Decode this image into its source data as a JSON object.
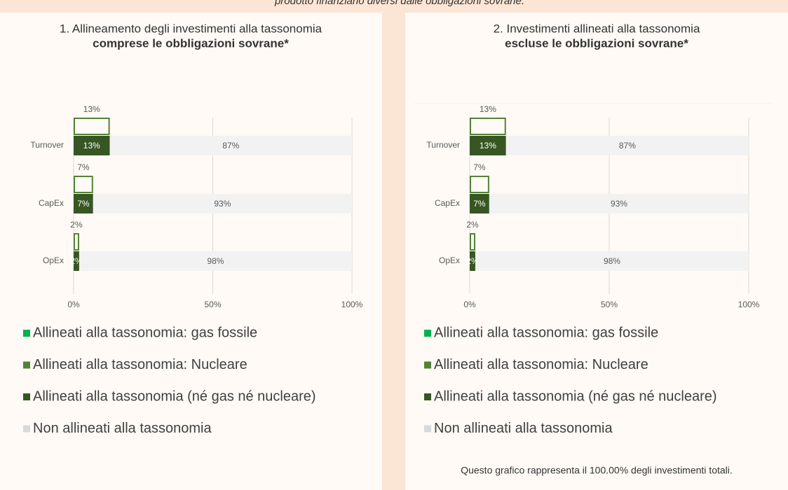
{
  "header": "prodotto finanziario diversi dalle obbligazioni sovrane.",
  "chart_data": [
    {
      "type": "bar",
      "orientation": "horizontal",
      "stacked": true,
      "title": "1. Allineamento degli investimenti alla tassonomia",
      "title_bold": "comprese le obbligazioni sovrane*",
      "categories": [
        "Turnover",
        "CapEx",
        "OpEx"
      ],
      "series": [
        {
          "name": "Allineati alla tassonomia: gas fossile",
          "color": "#00b050",
          "values": [
            0,
            0,
            0
          ]
        },
        {
          "name": "Allineati alla tassonomia: Nucleare",
          "color": "#548235",
          "values": [
            0,
            0,
            0
          ]
        },
        {
          "name": "Allineati alla tassonomia (né gas né nucleare)",
          "color": "#375623",
          "values": [
            13,
            7,
            2
          ],
          "value_labels": [
            "13%",
            "7%",
            "2%"
          ]
        },
        {
          "name": "Non allineati alla tassonomia",
          "color": "#f2f2f2",
          "values": [
            87,
            93,
            98
          ],
          "value_labels": [
            "87%",
            "93%",
            "98%"
          ]
        }
      ],
      "totals": {
        "color": "#548235",
        "values": [
          13,
          7,
          2
        ],
        "value_labels": [
          "13%",
          "7%",
          "2%"
        ]
      },
      "xlim": [
        0,
        100
      ],
      "xticks": [
        {
          "value": 0,
          "label": "0%"
        },
        {
          "value": 50,
          "label": "50%"
        },
        {
          "value": 100,
          "label": "100%"
        }
      ],
      "grid": true
    },
    {
      "type": "bar",
      "orientation": "horizontal",
      "stacked": true,
      "title": "2. Investimenti allineati alla tassonomia",
      "title_bold": "escluse le obbligazioni sovrane*",
      "categories": [
        "Turnover",
        "CapEx",
        "OpEx"
      ],
      "series": [
        {
          "name": "Allineati alla tassonomia: gas fossile",
          "color": "#00b050",
          "values": [
            0,
            0,
            0
          ]
        },
        {
          "name": "Allineati alla tassonomia: Nucleare",
          "color": "#548235",
          "values": [
            0,
            0,
            0
          ]
        },
        {
          "name": "Allineati alla tassonomia (né gas né nucleare)",
          "color": "#375623",
          "values": [
            13,
            7,
            2
          ],
          "value_labels": [
            "13%",
            "7%",
            "2%"
          ]
        },
        {
          "name": "Non allineati alla tassonomia",
          "color": "#f2f2f2",
          "values": [
            87,
            93,
            98
          ],
          "value_labels": [
            "87%",
            "93%",
            "98%"
          ]
        }
      ],
      "totals": {
        "color": "#548235",
        "values": [
          13,
          7,
          2
        ],
        "value_labels": [
          "13%",
          "7%",
          "2%"
        ]
      },
      "xlim": [
        0,
        100
      ],
      "xticks": [
        {
          "value": 0,
          "label": "0%"
        },
        {
          "value": 50,
          "label": "50%"
        },
        {
          "value": 100,
          "label": "100%"
        }
      ],
      "grid": true
    }
  ],
  "footnote": "Questo grafico rappresenta il 100.00% degli investimenti totali."
}
